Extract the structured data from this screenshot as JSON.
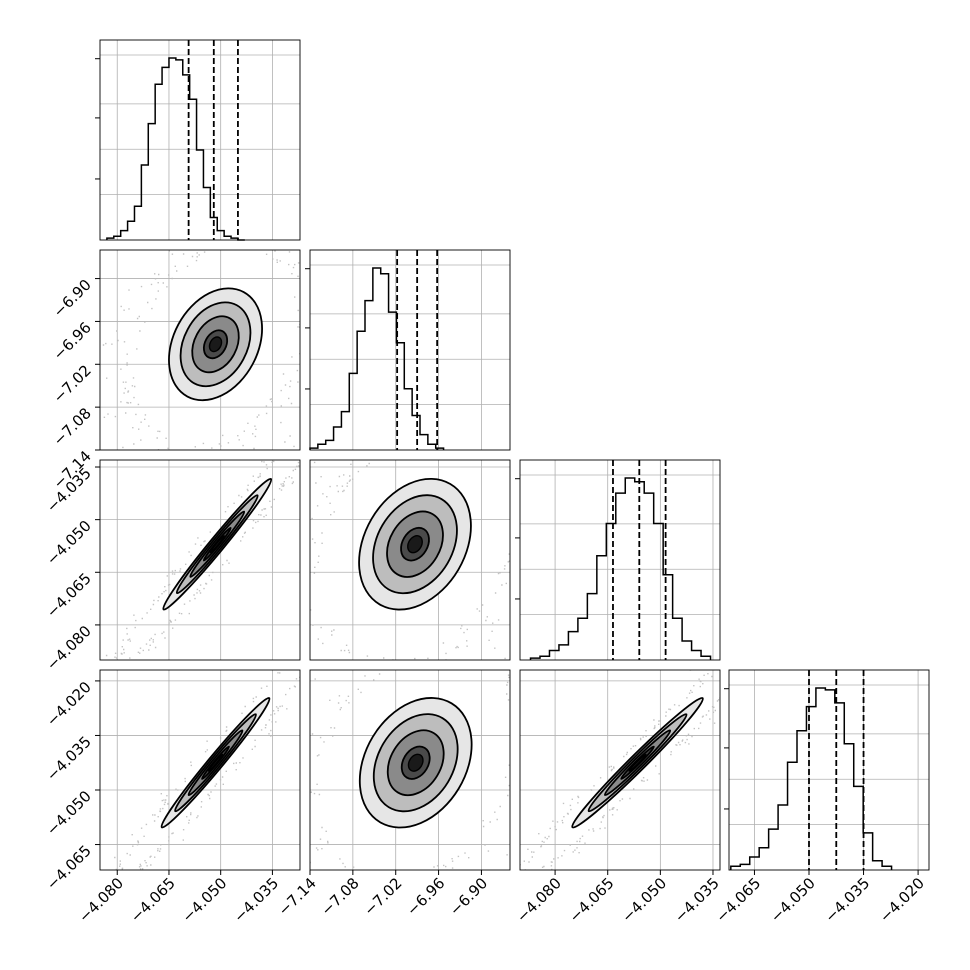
{
  "chart_data": {
    "type": "corner",
    "title": "",
    "parameters": 4,
    "colors": {
      "line": "#000000",
      "grid": "#b0b0b0",
      "scatter": "#bdbdbd",
      "fill_dark": "#3a3a3a",
      "fill_light": "#d9d9d9"
    },
    "grid": true,
    "axes": [
      {
        "range": [
          -4.085,
          -4.027
        ],
        "ticks": [
          -4.08,
          -4.065,
          -4.05,
          -4.035
        ],
        "tick_labels": [
          "−4.080",
          "−4.065",
          "−4.050",
          "−4.035"
        ]
      },
      {
        "range": [
          -7.14,
          -6.86
        ],
        "ticks": [
          -7.14,
          -7.08,
          -7.02,
          -6.96,
          -6.9
        ],
        "tick_labels": [
          "−7.14",
          "−7.08",
          "−7.02",
          "−6.96",
          "−6.90"
        ]
      },
      {
        "range": [
          -4.09,
          -4.033
        ],
        "ticks": [
          -4.08,
          -4.065,
          -4.05,
          -4.035
        ],
        "tick_labels": [
          "−4.080",
          "−4.065",
          "−4.050",
          "−4.035"
        ]
      },
      {
        "range": [
          -4.072,
          -4.017
        ],
        "ticks": [
          -4.065,
          -4.05,
          -4.035,
          -4.02
        ],
        "tick_labels": [
          "−4.065",
          "−4.050",
          "−4.035",
          "−4.020"
        ]
      }
    ],
    "quantiles": [
      [
        -4.0593,
        -4.052,
        -4.045
      ],
      [
        -7.018,
        -6.99,
        -6.962
      ],
      [
        -4.0635,
        -4.056,
        -4.0485
      ],
      [
        -4.05,
        -4.0425,
        -4.035
      ]
    ],
    "histograms": [
      {
        "edges_start": -4.083,
        "bin_width": 0.002,
        "counts": [
          1,
          2,
          5,
          10,
          18,
          40,
          62,
          83,
          92,
          97,
          96,
          88,
          75,
          48,
          28,
          12,
          5,
          2,
          1,
          0
        ]
      },
      {
        "edges_start": -7.14,
        "bin_width": 0.011,
        "counts": [
          1,
          3,
          5,
          12,
          20,
          40,
          62,
          78,
          95,
          92,
          72,
          56,
          32,
          18,
          8,
          3,
          1
        ]
      },
      {
        "edges_start": -4.087,
        "bin_width": 0.0027,
        "counts": [
          1,
          2,
          5,
          8,
          15,
          22,
          35,
          55,
          72,
          88,
          96,
          94,
          88,
          72,
          45,
          22,
          10,
          5,
          2
        ]
      },
      {
        "edges_start": -4.0715,
        "bin_width": 0.0026,
        "counts": [
          2,
          3,
          7,
          12,
          22,
          35,
          58,
          75,
          88,
          98,
          97,
          90,
          68,
          45,
          20,
          5,
          2
        ]
      }
    ],
    "pairs": [
      {
        "row": 1,
        "col": 0,
        "cx": -4.0515,
        "cy": -6.992,
        "sx": 0.005,
        "sy": 0.029,
        "rho": 0.28
      },
      {
        "row": 2,
        "col": 0,
        "cx": -4.051,
        "cy": -4.057,
        "sx": 0.0058,
        "sy": 0.0069,
        "rho": 0.985
      },
      {
        "row": 2,
        "col": 1,
        "cx": -6.993,
        "cy": -4.057,
        "sx": 0.029,
        "sy": 0.0069,
        "rho": 0.28
      },
      {
        "row": 3,
        "col": 0,
        "cx": -4.0515,
        "cy": -4.0425,
        "sx": 0.0058,
        "sy": 0.0066,
        "rho": 0.985
      },
      {
        "row": 3,
        "col": 1,
        "cx": -6.992,
        "cy": -4.0425,
        "sx": 0.029,
        "sy": 0.0066,
        "rho": 0.28
      },
      {
        "row": 3,
        "col": 2,
        "cx": -4.0565,
        "cy": -4.0425,
        "sx": 0.0069,
        "sy": 0.0066,
        "rho": 0.985
      }
    ],
    "contour_levels_sigma": [
      0.5,
      1.0,
      1.5,
      2.0
    ]
  }
}
